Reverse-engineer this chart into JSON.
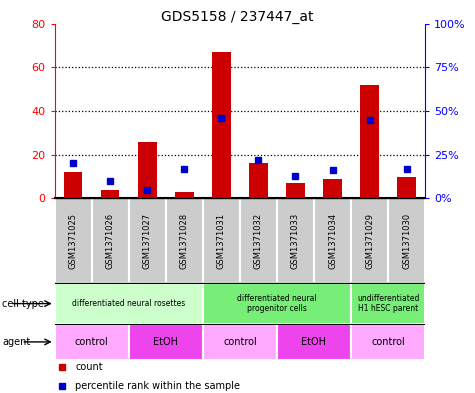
{
  "title": "GDS5158 / 237447_at",
  "samples": [
    "GSM1371025",
    "GSM1371026",
    "GSM1371027",
    "GSM1371028",
    "GSM1371031",
    "GSM1371032",
    "GSM1371033",
    "GSM1371034",
    "GSM1371029",
    "GSM1371030"
  ],
  "counts": [
    12,
    4,
    26,
    3,
    67,
    16,
    7,
    9,
    52,
    10
  ],
  "percentiles": [
    20,
    10,
    5,
    17,
    46,
    22,
    13,
    16,
    45,
    17
  ],
  "ylim_left": [
    0,
    80
  ],
  "ylim_right": [
    0,
    100
  ],
  "yticks_left": [
    0,
    20,
    40,
    60,
    80
  ],
  "yticks_right": [
    0,
    25,
    50,
    75,
    100
  ],
  "ytick_labels_right": [
    "0%",
    "25%",
    "50%",
    "75%",
    "100%"
  ],
  "cell_types": [
    {
      "label": "differentiated neural rosettes",
      "start": 0,
      "end": 4,
      "color": "#ccffcc"
    },
    {
      "label": "differentiated neural\nprogenitor cells",
      "start": 4,
      "end": 8,
      "color": "#77ee77"
    },
    {
      "label": "undifferentiated\nH1 hESC parent",
      "start": 8,
      "end": 10,
      "color": "#77ee77"
    }
  ],
  "agents": [
    {
      "label": "control",
      "start": 0,
      "end": 2,
      "color": "#ffaaff"
    },
    {
      "label": "EtOH",
      "start": 2,
      "end": 4,
      "color": "#ee44ee"
    },
    {
      "label": "control",
      "start": 4,
      "end": 6,
      "color": "#ffaaff"
    },
    {
      "label": "EtOH",
      "start": 6,
      "end": 8,
      "color": "#ee44ee"
    },
    {
      "label": "control",
      "start": 8,
      "end": 10,
      "color": "#ffaaff"
    }
  ],
  "bar_color": "#cc0000",
  "marker_color": "#0000cc",
  "sample_bg_color": "#cccccc",
  "label_fontsize": 7,
  "title_fontsize": 10
}
